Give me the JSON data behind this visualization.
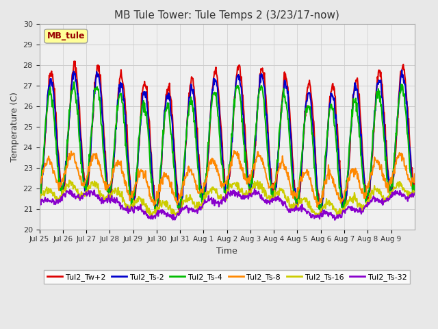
{
  "title": "MB Tule Tower: Tule Temps 2 (3/23/17-now)",
  "xlabel": "Time",
  "ylabel": "Temperature (C)",
  "ylim": [
    20.0,
    30.0
  ],
  "yticks": [
    20.0,
    21.0,
    22.0,
    23.0,
    24.0,
    25.0,
    26.0,
    27.0,
    28.0,
    29.0,
    30.0
  ],
  "xtick_labels": [
    "Jul 25",
    "Jul 26",
    "Jul 27",
    "Jul 28",
    "Jul 29",
    "Jul 30",
    "Jul 31",
    "Aug 1",
    "Aug 2",
    "Aug 3",
    "Aug 4",
    "Aug 5",
    "Aug 6",
    "Aug 7",
    "Aug 8",
    "Aug 9"
  ],
  "xtick_positions": [
    0,
    1,
    2,
    3,
    4,
    5,
    6,
    7,
    8,
    9,
    10,
    11,
    12,
    13,
    14,
    15
  ],
  "series_colors": [
    "#dd0000",
    "#0000cc",
    "#00bb00",
    "#ff8800",
    "#cccc00",
    "#8800cc"
  ],
  "series_names": [
    "Tul2_Tw+2",
    "Tul2_Ts-2",
    "Tul2_Ts-4",
    "Tul2_Ts-8",
    "Tul2_Ts-16",
    "Tul2_Ts-32"
  ],
  "series_linewidths": [
    1.5,
    1.5,
    1.5,
    1.5,
    1.5,
    1.5
  ],
  "mb_tule_label": "MB_tule",
  "background_color": "#e8e8e8",
  "plot_bg_color": "#f0f0f0",
  "n_days": 16,
  "pts_per_day": 48
}
